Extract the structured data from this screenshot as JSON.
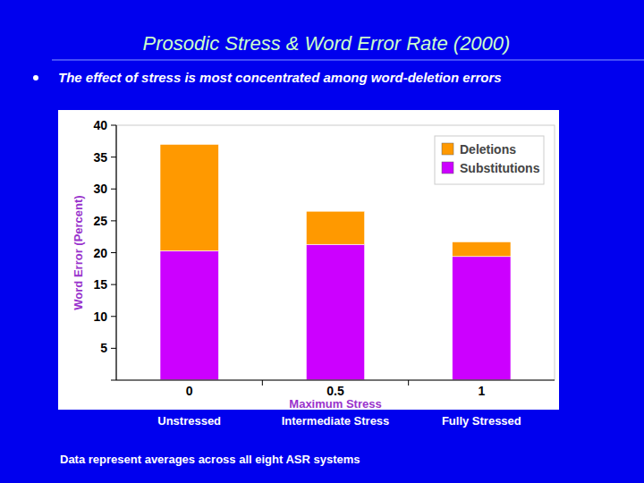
{
  "chart_data": {
    "type": "bar",
    "title": "Prosodic Stress & Word Error Rate (2000)",
    "subtitle": "The effect of stress is most concentrated among word-deletion errors",
    "x_label": "Maximum Stress",
    "y_label": "Word Error (Percent)",
    "categories": [
      "0",
      "0.5",
      "1"
    ],
    "category_notes": [
      "Unstressed",
      "Intermediate Stress",
      "Fully Stressed"
    ],
    "note": "Data represent averages across all eight ASR systems",
    "series": [
      {
        "name": "Substitutions",
        "color": "#cc00ff",
        "values": [
          20.3,
          21.3,
          19.4
        ]
      },
      {
        "name": "Deletions",
        "color": "#ff9900",
        "values": [
          16.7,
          5.2,
          2.3
        ]
      }
    ],
    "stacked": true,
    "ylim": [
      0,
      40
    ],
    "yticks": [
      5,
      10,
      15,
      20,
      25,
      30,
      35,
      40
    ],
    "grid": false,
    "legend": "upper right"
  }
}
